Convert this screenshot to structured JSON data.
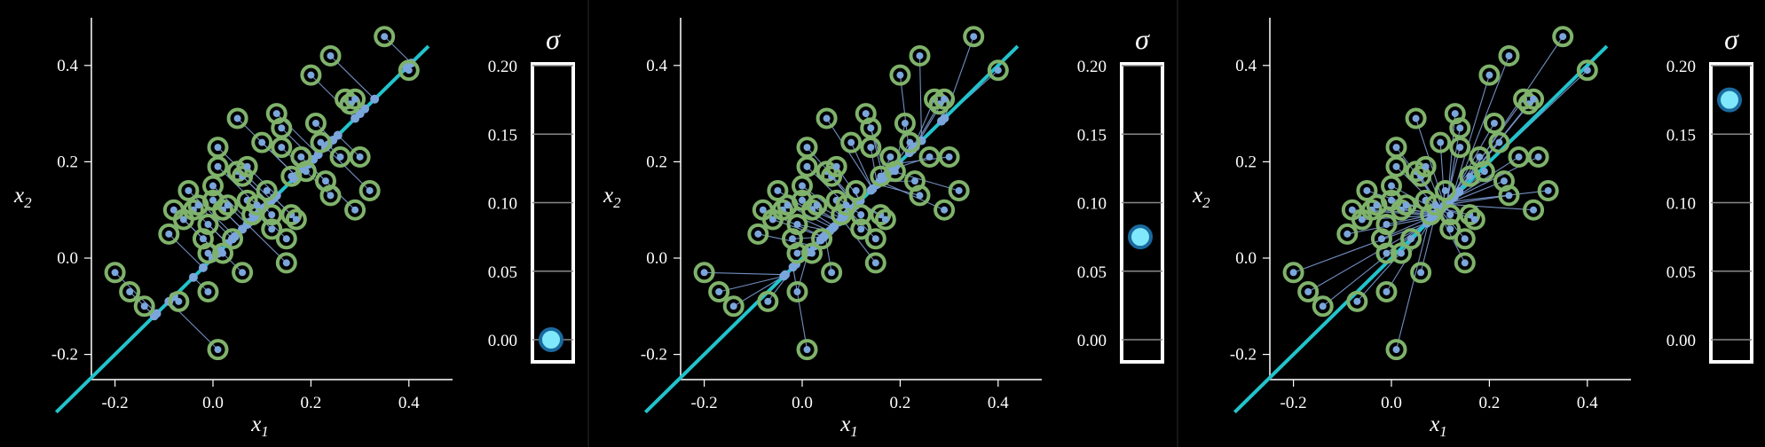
{
  "colors": {
    "background": "#000000",
    "axis": "#ffffff",
    "ring": "#7fb26a",
    "point": "#7aa6dc",
    "projection_line": "#7f9ed6",
    "fit_line": "#22c3cc",
    "sigma_marker_fill": "#7fe8fa",
    "sigma_marker_stroke": "#1a6a9e",
    "gauge_frame": "#ffffff",
    "gauge_grid": "#888888"
  },
  "chart_data": [
    {
      "type": "scatter",
      "xlabel": "x1",
      "ylabel": "x2",
      "xlim": [
        -0.25,
        0.5
      ],
      "ylim": [
        -0.25,
        0.5
      ],
      "xticks": [
        "-0.2",
        "0.0",
        "0.2",
        "0.4"
      ],
      "yticks": [
        "-0.2",
        "0.0",
        "0.2",
        "0.4"
      ],
      "sigma_label": "σ",
      "sigma_ticks": [
        "0.20",
        "0.15",
        "0.10",
        "0.05",
        "0.00"
      ],
      "sigma_range": [
        0.0,
        0.2
      ],
      "sigma": 0.0,
      "fit_line": {
        "slope": 1.0,
        "intercept": 0.0
      },
      "center": [
        0.1,
        0.1
      ]
    },
    {
      "type": "scatter",
      "xlabel": "x1",
      "ylabel": "x2",
      "xlim": [
        -0.25,
        0.5
      ],
      "ylim": [
        -0.25,
        0.5
      ],
      "xticks": [
        "-0.2",
        "0.0",
        "0.2",
        "0.4"
      ],
      "yticks": [
        "-0.2",
        "0.0",
        "0.2",
        "0.4"
      ],
      "sigma_label": "σ",
      "sigma_ticks": [
        "0.20",
        "0.15",
        "0.10",
        "0.05",
        "0.00"
      ],
      "sigma_range": [
        0.0,
        0.2
      ],
      "sigma": 0.075,
      "fit_line": {
        "slope": 1.0,
        "intercept": 0.0
      },
      "center": [
        0.1,
        0.1
      ]
    },
    {
      "type": "scatter",
      "xlabel": "x1",
      "ylabel": "x2",
      "xlim": [
        -0.25,
        0.5
      ],
      "ylim": [
        -0.25,
        0.5
      ],
      "xticks": [
        "-0.2",
        "0.0",
        "0.2",
        "0.4"
      ],
      "yticks": [
        "-0.2",
        "0.0",
        "0.2",
        "0.4"
      ],
      "sigma_label": "σ",
      "sigma_ticks": [
        "0.20",
        "0.15",
        "0.10",
        "0.05",
        "0.00"
      ],
      "sigma_range": [
        0.0,
        0.2
      ],
      "sigma": 0.175,
      "fit_line": {
        "slope": 1.0,
        "intercept": 0.0
      },
      "center": [
        0.1,
        0.1
      ]
    }
  ],
  "points": [
    [
      -0.2,
      -0.03
    ],
    [
      -0.17,
      -0.07
    ],
    [
      -0.14,
      -0.1
    ],
    [
      -0.08,
      0.1
    ],
    [
      -0.09,
      0.05
    ],
    [
      -0.07,
      -0.09
    ],
    [
      -0.06,
      0.08
    ],
    [
      -0.05,
      0.14
    ],
    [
      -0.04,
      0.1
    ],
    [
      -0.03,
      0.11
    ],
    [
      -0.02,
      0.04
    ],
    [
      -0.01,
      0.07
    ],
    [
      -0.01,
      0.01
    ],
    [
      0.0,
      0.15
    ],
    [
      0.0,
      0.12
    ],
    [
      0.01,
      0.19
    ],
    [
      0.01,
      0.23
    ],
    [
      -0.01,
      -0.07
    ],
    [
      0.01,
      -0.19
    ],
    [
      0.02,
      0.1
    ],
    [
      0.02,
      0.01
    ],
    [
      0.03,
      0.11
    ],
    [
      0.04,
      0.04
    ],
    [
      0.05,
      0.29
    ],
    [
      0.05,
      0.18
    ],
    [
      0.06,
      0.17
    ],
    [
      0.06,
      -0.03
    ],
    [
      0.07,
      0.12
    ],
    [
      0.08,
      0.09
    ],
    [
      0.09,
      0.11
    ],
    [
      0.1,
      0.24
    ],
    [
      0.11,
      0.14
    ],
    [
      0.12,
      0.09
    ],
    [
      0.12,
      0.06
    ],
    [
      0.13,
      0.3
    ],
    [
      0.14,
      0.27
    ],
    [
      0.14,
      0.23
    ],
    [
      0.15,
      0.04
    ],
    [
      0.15,
      -0.01
    ],
    [
      0.16,
      0.17
    ],
    [
      0.16,
      0.09
    ],
    [
      0.17,
      0.08
    ],
    [
      0.18,
      0.21
    ],
    [
      0.19,
      0.18
    ],
    [
      0.2,
      0.38
    ],
    [
      0.21,
      0.28
    ],
    [
      0.22,
      0.24
    ],
    [
      0.23,
      0.16
    ],
    [
      0.24,
      0.42
    ],
    [
      0.24,
      0.13
    ],
    [
      0.26,
      0.21
    ],
    [
      0.27,
      0.33
    ],
    [
      0.28,
      0.32
    ],
    [
      0.29,
      0.33
    ],
    [
      0.29,
      0.1
    ],
    [
      0.3,
      0.21
    ],
    [
      0.35,
      0.46
    ],
    [
      0.4,
      0.39
    ],
    [
      0.32,
      0.14
    ],
    [
      0.07,
      0.19
    ]
  ]
}
